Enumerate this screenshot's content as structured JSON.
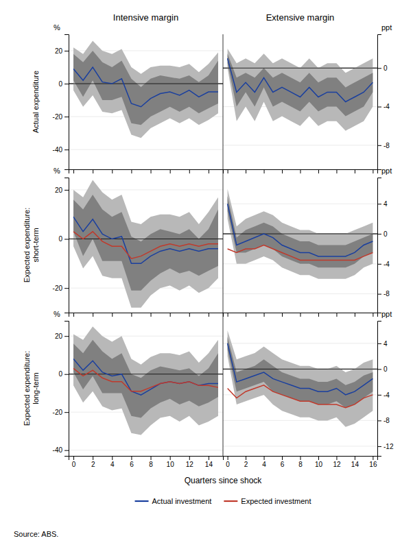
{
  "chart_data": [
    {
      "type": "line",
      "title": "Intensive margin",
      "ylabel": "Actual expenditure",
      "annotations": [
        "%"
      ],
      "x": [
        0,
        1,
        2,
        3,
        4,
        5,
        6,
        7,
        8,
        9,
        10,
        11,
        12,
        13,
        14,
        15
      ],
      "xlim": [
        -0.5,
        15.5
      ],
      "xticks": [
        0,
        2,
        4,
        6,
        8,
        10,
        12,
        14
      ],
      "ylim": [
        -52,
        30
      ],
      "yticks": [
        20,
        0,
        -20,
        -40
      ],
      "grid": true,
      "tick_labels": "y",
      "bands": [
        {
          "color": "#b8b8b8",
          "lower": [
            -4,
            -14,
            -7,
            -17,
            -18,
            -16,
            -31,
            -33,
            -27,
            -24,
            -21,
            -24,
            -21,
            -25,
            -22,
            -18
          ],
          "upper": [
            22,
            18,
            26,
            20,
            18,
            21,
            10,
            6,
            10,
            11,
            11,
            10,
            12,
            7,
            12,
            19
          ]
        },
        {
          "color": "#808080",
          "lower": [
            2,
            -8,
            2,
            -10,
            -10,
            -8,
            -24,
            -25,
            -20,
            -17,
            -14,
            -17,
            -14,
            -18,
            -15,
            -12
          ],
          "upper": [
            18,
            13,
            20,
            13,
            10,
            14,
            3,
            -2,
            3,
            5,
            4,
            3,
            5,
            1,
            5,
            14
          ]
        }
      ],
      "series": [
        {
          "color": "#1a3f9e",
          "values": [
            9,
            2,
            10,
            1,
            0,
            3,
            -12,
            -14,
            -9,
            -6,
            -5,
            -7,
            -4,
            -8,
            -5,
            -5
          ]
        }
      ]
    },
    {
      "type": "line",
      "title": "Extensive margin",
      "annotations": [
        "ppt"
      ],
      "x": [
        0,
        1,
        2,
        3,
        4,
        5,
        6,
        7,
        8,
        9,
        10,
        11,
        12,
        13,
        14,
        15,
        16
      ],
      "xlim": [
        -0.5,
        16.5
      ],
      "xticks": [
        0,
        2,
        4,
        6,
        8,
        10,
        12,
        14,
        16
      ],
      "ylim": [
        -10.5,
        3.5
      ],
      "yticks": [
        0,
        -4,
        -8
      ],
      "grid": true,
      "tick_labels": "y",
      "bands": [
        {
          "color": "#b8b8b8",
          "lower": [
            0.0,
            -5.5,
            -4.0,
            -5.5,
            -3.5,
            -5.5,
            -5.0,
            -5.5,
            -6.0,
            -5.0,
            -6.0,
            -5.5,
            -5.5,
            -6.5,
            -6.0,
            -5.5,
            -4.0
          ],
          "upper": [
            2.0,
            0.5,
            1.0,
            0.5,
            1.5,
            0.5,
            1.0,
            0.5,
            0.0,
            1.0,
            0.0,
            0.5,
            0.5,
            -0.5,
            0.0,
            0.5,
            1.0
          ]
        },
        {
          "color": "#808080",
          "lower": [
            0.5,
            -4.0,
            -2.5,
            -4.0,
            -2.0,
            -4.0,
            -3.5,
            -4.0,
            -4.5,
            -3.5,
            -4.5,
            -4.0,
            -4.0,
            -5.0,
            -4.5,
            -4.0,
            -2.5
          ],
          "upper": [
            1.5,
            -1.0,
            -0.5,
            -1.0,
            0.0,
            -1.0,
            -0.5,
            -1.0,
            -1.5,
            -0.5,
            -1.5,
            -1.0,
            -1.0,
            -2.0,
            -1.5,
            -1.0,
            -0.5
          ]
        }
      ],
      "series": [
        {
          "color": "#1a3f9e",
          "values": [
            1.0,
            -2.5,
            -1.5,
            -2.5,
            -1.0,
            -2.5,
            -2.0,
            -2.5,
            -3.0,
            -2.0,
            -3.0,
            -2.5,
            -2.5,
            -3.5,
            -3.0,
            -2.5,
            -1.5
          ]
        }
      ]
    },
    {
      "type": "line",
      "ylabel": "Expected expenditure:\nshort-term",
      "annotations": [
        "%"
      ],
      "x": [
        0,
        1,
        2,
        3,
        4,
        5,
        6,
        7,
        8,
        9,
        10,
        11,
        12,
        13,
        14,
        15
      ],
      "xlim": [
        -0.5,
        15.5
      ],
      "xticks": [
        0,
        2,
        4,
        6,
        8,
        10,
        12,
        14
      ],
      "ylim": [
        -30,
        25
      ],
      "yticks": [
        20,
        0,
        -20
      ],
      "grid": true,
      "tick_labels": "y",
      "bands": [
        {
          "color": "#b8b8b8",
          "lower": [
            -3,
            -12,
            -7,
            -15,
            -16,
            -16,
            -28,
            -28,
            -23,
            -20,
            -19,
            -21,
            -19,
            -22,
            -20,
            -16
          ],
          "upper": [
            20,
            17,
            24,
            19,
            16,
            18,
            7,
            6,
            9,
            10,
            10,
            9,
            11,
            6,
            11,
            17
          ]
        },
        {
          "color": "#808080",
          "lower": [
            3,
            -7,
            0,
            -9,
            -9,
            -9,
            -21,
            -21,
            -17,
            -14,
            -12,
            -14,
            -13,
            -15,
            -13,
            -11
          ],
          "upper": [
            16,
            12,
            18,
            12,
            9,
            11,
            1,
            -1,
            2,
            4,
            3,
            2,
            4,
            0,
            4,
            12
          ]
        }
      ],
      "series": [
        {
          "color": "#1a3f9e",
          "values": [
            9,
            3,
            8,
            2,
            0,
            1,
            -10,
            -10,
            -7,
            -5,
            -4,
            -5,
            -4,
            -5,
            -4,
            -4
          ]
        },
        {
          "color": "#c0392b",
          "values": [
            3,
            0,
            3,
            -1,
            -3,
            -3,
            -8,
            -7,
            -5,
            -3,
            -2,
            -3,
            -2,
            -3,
            -2,
            -2
          ]
        }
      ]
    },
    {
      "type": "line",
      "annotations": [
        "ppt"
      ],
      "x": [
        0,
        1,
        2,
        3,
        4,
        5,
        6,
        7,
        8,
        9,
        10,
        11,
        12,
        13,
        14,
        15,
        16
      ],
      "xlim": [
        -0.5,
        16.5
      ],
      "xticks": [
        0,
        2,
        4,
        6,
        8,
        10,
        12,
        14,
        16
      ],
      "ylim": [
        -10.5,
        7.5
      ],
      "yticks": [
        4,
        0,
        -4,
        -8
      ],
      "grid": true,
      "tick_labels": "y",
      "bands": [
        {
          "color": "#b8b8b8",
          "lower": [
            2.0,
            -4.0,
            -4.0,
            -3.5,
            -3.0,
            -3.5,
            -4.5,
            -5.0,
            -5.5,
            -5.5,
            -6.0,
            -6.0,
            -6.0,
            -6.0,
            -5.5,
            -4.5,
            -4.0
          ],
          "upper": [
            6.0,
            1.0,
            2.0,
            2.5,
            3.0,
            2.5,
            1.5,
            1.0,
            0.5,
            0.5,
            0.0,
            0.0,
            0.0,
            0.0,
            0.5,
            1.0,
            1.5
          ]
        },
        {
          "color": "#808080",
          "lower": [
            3.0,
            -2.5,
            -2.5,
            -2.0,
            -1.5,
            -2.0,
            -3.0,
            -3.5,
            -4.0,
            -4.0,
            -4.5,
            -4.5,
            -4.5,
            -4.5,
            -4.0,
            -3.0,
            -2.5
          ],
          "upper": [
            5.0,
            -0.5,
            0.5,
            1.0,
            1.5,
            1.0,
            0.0,
            -0.5,
            -1.0,
            -1.0,
            -1.5,
            -1.5,
            -1.5,
            -1.5,
            -1.0,
            -0.5,
            0.0
          ]
        }
      ],
      "series": [
        {
          "color": "#1a3f9e",
          "values": [
            4.0,
            -1.5,
            -1.0,
            -0.5,
            0.0,
            -0.5,
            -1.5,
            -2.0,
            -2.5,
            -2.5,
            -3.0,
            -3.0,
            -3.0,
            -3.0,
            -2.5,
            -1.5,
            -1.0
          ]
        },
        {
          "color": "#c0392b",
          "values": [
            -2.0,
            -2.5,
            -2.0,
            -2.0,
            -1.5,
            -2.0,
            -2.5,
            -3.0,
            -3.5,
            -3.5,
            -3.5,
            -3.5,
            -3.5,
            -3.5,
            -3.5,
            -3.0,
            -2.5
          ]
        }
      ]
    },
    {
      "type": "line",
      "ylabel": "Expected expenditure:\nlong-term",
      "xlabel": "Quarters since shock",
      "legend": "bottom",
      "annotations": [
        "%",
        "Source:   ABS."
      ],
      "x": [
        0,
        1,
        2,
        3,
        4,
        5,
        6,
        7,
        8,
        9,
        10,
        11,
        12,
        13,
        14,
        15
      ],
      "xlim": [
        -0.5,
        15.5
      ],
      "xticks": [
        0,
        2,
        4,
        6,
        8,
        10,
        12,
        14
      ],
      "ylim": [
        -43,
        28
      ],
      "yticks": [
        20,
        0,
        -20,
        -40
      ],
      "grid": true,
      "bands": [
        {
          "color": "#b8b8b8",
          "lower": [
            -6,
            -15,
            -9,
            -17,
            -19,
            -18,
            -31,
            -32,
            -27,
            -23,
            -22,
            -25,
            -22,
            -27,
            -25,
            -22
          ],
          "upper": [
            21,
            18,
            25,
            20,
            17,
            20,
            8,
            5,
            9,
            11,
            11,
            10,
            12,
            6,
            11,
            18
          ]
        },
        {
          "color": "#808080",
          "lower": [
            1,
            -8,
            -1,
            -10,
            -10,
            -10,
            -22,
            -23,
            -18,
            -15,
            -13,
            -16,
            -14,
            -17,
            -15,
            -12
          ],
          "upper": [
            16,
            11,
            18,
            12,
            8,
            11,
            0,
            -2,
            2,
            4,
            3,
            2,
            3,
            -1,
            3,
            11
          ]
        }
      ],
      "series": [
        {
          "name": "Actual investment",
          "color": "#1a3f9e",
          "values": [
            8,
            2,
            7,
            1,
            -1,
            0,
            -9,
            -11,
            -8,
            -5,
            -4,
            -5,
            -4,
            -6,
            -5,
            -5
          ]
        },
        {
          "name": "Expected investment",
          "color": "#c0392b",
          "values": [
            3,
            -1,
            2,
            -2,
            -4,
            -4,
            -9,
            -9,
            -7,
            -5,
            -4,
            -5,
            -4,
            -6,
            -6,
            -7
          ]
        }
      ]
    },
    {
      "type": "line",
      "annotations": [
        "ppt"
      ],
      "x": [
        0,
        1,
        2,
        3,
        4,
        5,
        6,
        7,
        8,
        9,
        10,
        11,
        12,
        13,
        14,
        15,
        16
      ],
      "xlim": [
        -0.5,
        16.5
      ],
      "xticks": [
        0,
        2,
        4,
        6,
        8,
        10,
        12,
        14,
        16
      ],
      "ylim": [
        -13.5,
        7.5
      ],
      "yticks": [
        4,
        0,
        -4,
        -8,
        -12
      ],
      "grid": true,
      "bands": [
        {
          "color": "#b8b8b8",
          "lower": [
            2.0,
            -5.5,
            -5.0,
            -4.5,
            -4.0,
            -5.5,
            -6.5,
            -7.0,
            -7.5,
            -7.5,
            -8.0,
            -8.0,
            -7.5,
            -9.0,
            -8.5,
            -7.5,
            -6.5
          ],
          "upper": [
            6.0,
            1.5,
            2.0,
            2.5,
            3.5,
            2.5,
            1.5,
            1.0,
            0.5,
            0.5,
            0.0,
            0.0,
            0.5,
            -0.5,
            0.0,
            1.0,
            1.5
          ]
        },
        {
          "color": "#808080",
          "lower": [
            3.0,
            -3.5,
            -3.0,
            -2.5,
            -2.0,
            -3.5,
            -4.0,
            -4.5,
            -5.0,
            -5.0,
            -5.5,
            -5.5,
            -5.0,
            -6.0,
            -5.5,
            -4.5,
            -3.5
          ],
          "upper": [
            5.0,
            -0.5,
            0.0,
            0.5,
            1.5,
            0.5,
            -0.5,
            -1.0,
            -1.5,
            -1.5,
            -2.0,
            -2.0,
            -1.5,
            -2.5,
            -2.0,
            -1.0,
            -0.5
          ]
        }
      ],
      "series": [
        {
          "color": "#1a3f9e",
          "values": [
            4.0,
            -2.0,
            -1.5,
            -1.0,
            -0.5,
            -1.5,
            -2.0,
            -2.5,
            -3.0,
            -3.0,
            -3.5,
            -3.5,
            -3.0,
            -4.0,
            -3.5,
            -2.5,
            -1.5
          ]
        },
        {
          "color": "#c0392b",
          "values": [
            -3.0,
            -4.5,
            -3.5,
            -3.0,
            -2.5,
            -3.5,
            -4.0,
            -4.5,
            -5.0,
            -5.0,
            -5.5,
            -5.5,
            -5.5,
            -6.0,
            -5.5,
            -4.5,
            -4.0
          ]
        }
      ]
    }
  ]
}
